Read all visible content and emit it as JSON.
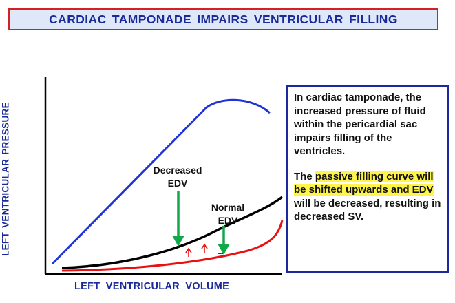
{
  "title": "CARDIAC  TAMPONADE  IMPAIRS  VENTRICULAR  FILLING",
  "axes": {
    "y_label": "LEFT  VENTRICULAR  PRESSURE",
    "x_label": "LEFT  VENTRICULAR  VOLUME"
  },
  "annotations": {
    "decreased_edv_line1": "Decreased",
    "decreased_edv_line2": "EDV",
    "normal_edv_line1": "Normal",
    "normal_edv_line2": "EDV"
  },
  "info": {
    "paragraph1": "In cardiac tamponade, the increased pressure of fluid within the pericardial sac impairs filling of the ventricles.",
    "paragraph2_prefix": "The ",
    "paragraph2_highlight": "passive filling curve will be shifted upwards and EDV",
    "paragraph2_suffix": " will be decreased, resulting in decreased SV."
  },
  "colors": {
    "title_text": "#1a2a9a",
    "title_border": "#d42020",
    "title_bg": "#dfe8f8",
    "active_curve": "#1f33d6",
    "tamponade_curve": "#000000",
    "normal_curve": "#e81010",
    "edv_arrow": "#12a84a",
    "shift_arrow": "#e81010",
    "highlight": "#fff44a"
  },
  "legend_icons": {
    "edv_arrows": "arrow-down-icon",
    "shift_arrows": "arrow-up-icon"
  }
}
